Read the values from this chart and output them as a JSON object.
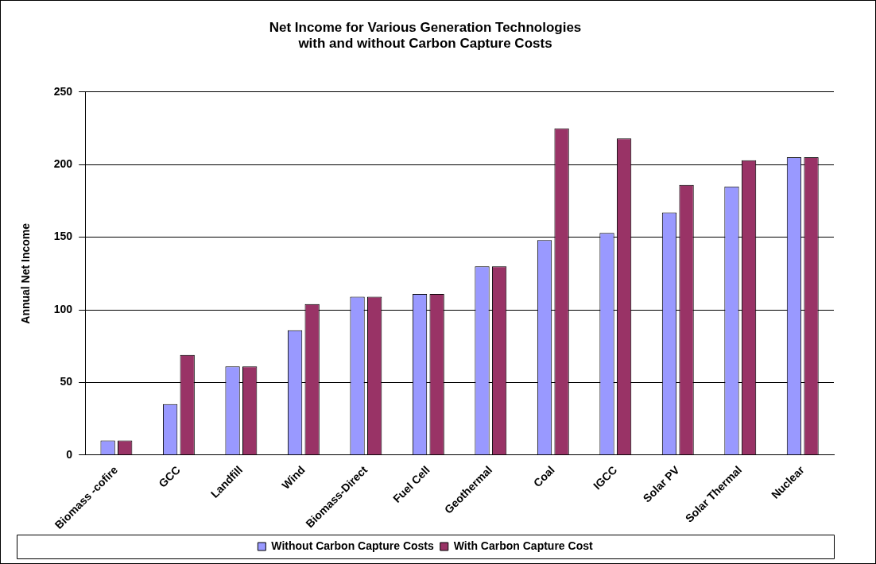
{
  "chart_data": {
    "type": "bar",
    "title": [
      "Net Income for Various Generation Technologies",
      "with and without Carbon Capture Costs"
    ],
    "ylabel": "Annual Net Income",
    "categories": [
      "Biomass -cofire",
      "GCC",
      "Landfill",
      "Wind",
      "Biomass-Direct",
      "Fuel Cell",
      "Geothermal",
      "Coal",
      "IGCC",
      "Solar PV",
      "Solar Thermal",
      "Nuclear"
    ],
    "series": [
      {
        "name": "Without Carbon Capture Costs",
        "color": "#9999ff",
        "values": [
          10,
          35,
          61,
          86,
          109,
          111,
          130,
          148,
          153,
          167,
          185,
          205
        ]
      },
      {
        "name": "With Carbon Capture Cost",
        "color": "#993366",
        "values": [
          10,
          69,
          61,
          104,
          109,
          111,
          130,
          225,
          218,
          186,
          203,
          205
        ]
      }
    ],
    "ylim": [
      0,
      250
    ],
    "yticks": [
      0,
      50,
      100,
      150,
      200,
      250
    ],
    "grid": "y",
    "legend": "bottom"
  }
}
